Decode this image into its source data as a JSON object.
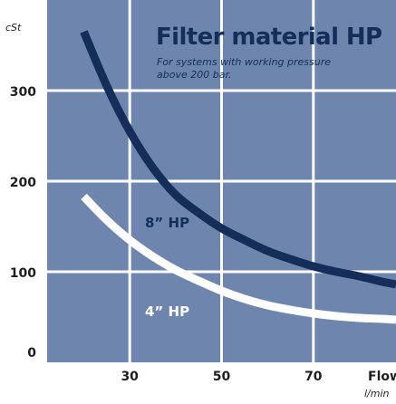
{
  "chart_data": {
    "type": "line",
    "title": "Filter material HP",
    "subtitle_lines": [
      "For systems with working pressure",
      "above 200 bar."
    ],
    "ylabel": "cSt",
    "xlabel": "Flow",
    "xunit": "l/min",
    "xlim": [
      12,
      88
    ],
    "ylim": [
      0,
      400
    ],
    "x_gridlines": [
      30,
      50,
      70
    ],
    "y_gridlines": [
      100,
      200,
      300
    ],
    "x_ticks": [
      "30",
      "50",
      "70"
    ],
    "y_ticks": [
      "0",
      "100",
      "200",
      "300"
    ],
    "grid": true,
    "colors": {
      "background": "#6e86ad",
      "grid": "#ffffff",
      "series_8hp": "#142e59",
      "series_4hp": "#ffffff"
    },
    "series": [
      {
        "name": "8” HP",
        "x": [
          20,
          25,
          30,
          35,
          40,
          45,
          50,
          55,
          60,
          65,
          70,
          75,
          80,
          85,
          88
        ],
        "y": [
          365,
          305,
          255,
          215,
          185,
          165,
          148,
          135,
          123,
          114,
          106,
          100,
          95,
          89,
          86
        ]
      },
      {
        "name": "4” HP",
        "x": [
          20,
          25,
          30,
          35,
          40,
          45,
          50,
          55,
          60,
          65,
          70,
          75,
          80,
          85,
          88
        ],
        "y": [
          183,
          157,
          135,
          117,
          102,
          90,
          79,
          70,
          63,
          58,
          54,
          51,
          49,
          48,
          47
        ]
      }
    ]
  }
}
